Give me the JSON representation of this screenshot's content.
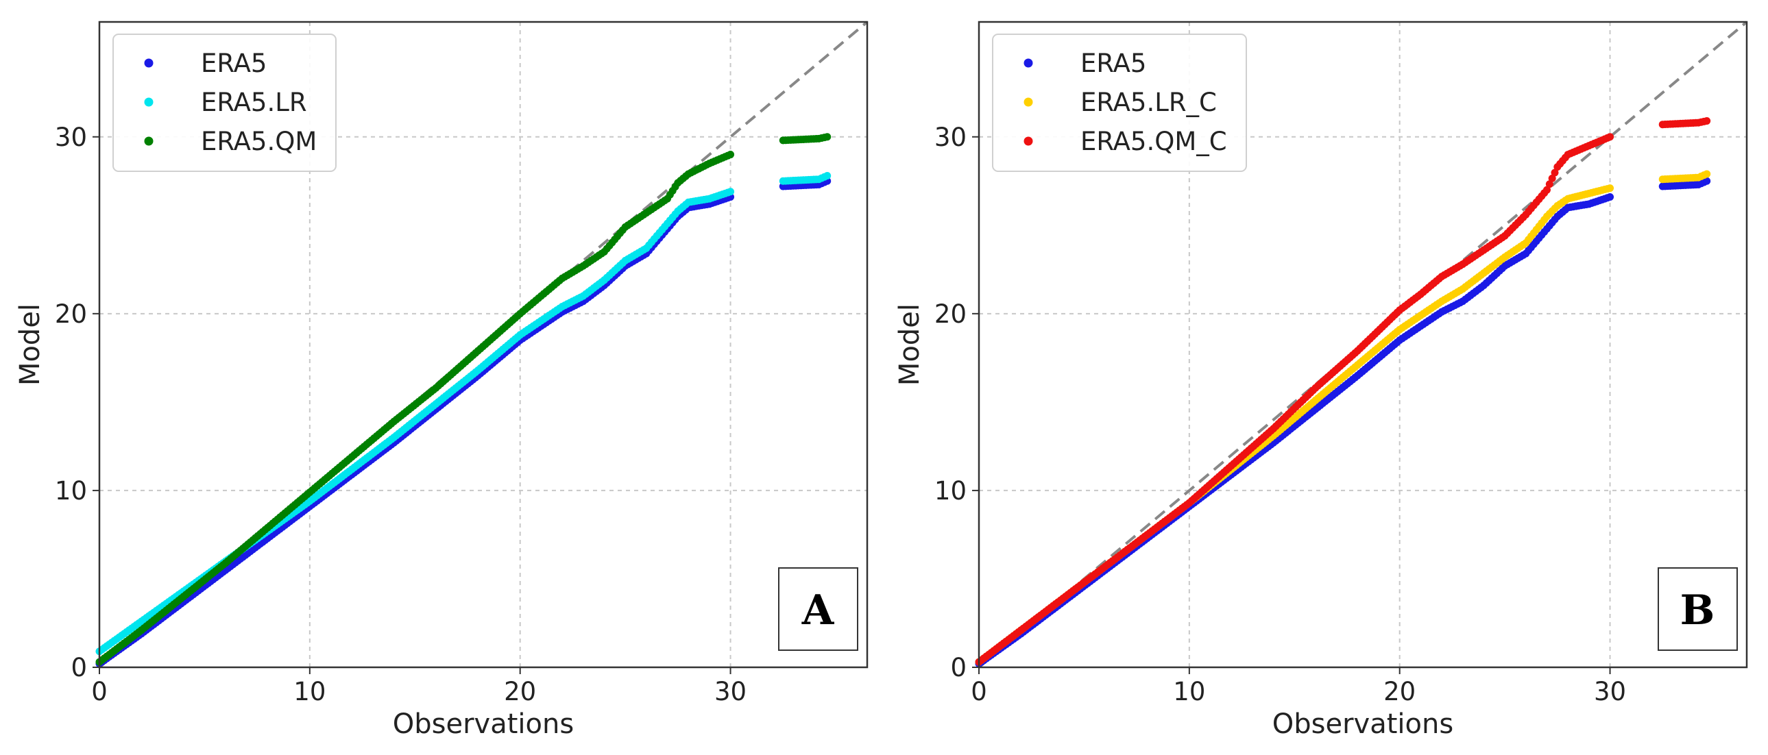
{
  "chart_data": [
    {
      "type": "scatter",
      "panel": "A",
      "xlabel": "Observations",
      "ylabel": "Model",
      "xlim": [
        0,
        36.5
      ],
      "ylim": [
        0,
        36.5
      ],
      "xticks": [
        0,
        10,
        20,
        30
      ],
      "yticks": [
        0,
        10,
        20,
        30
      ],
      "grid": true,
      "legend_position": "top-left",
      "reference_line": {
        "style": "dashed",
        "color": "#888888",
        "from": [
          0,
          0
        ],
        "to": [
          36.5,
          36.5
        ]
      },
      "series": [
        {
          "name": "ERA5",
          "color": "#1a1ae6",
          "points": [
            [
              0,
              0.2
            ],
            [
              2,
              1.9
            ],
            [
              4,
              3.7
            ],
            [
              6,
              5.5
            ],
            [
              8,
              7.3
            ],
            [
              10,
              9.1
            ],
            [
              12,
              10.9
            ],
            [
              14,
              12.7
            ],
            [
              16,
              14.6
            ],
            [
              18,
              16.5
            ],
            [
              20,
              18.5
            ],
            [
              21,
              19.3
            ],
            [
              22,
              20.1
            ],
            [
              23,
              20.7
            ],
            [
              24,
              21.6
            ],
            [
              25,
              22.7
            ],
            [
              26,
              23.4
            ],
            [
              27,
              24.8
            ],
            [
              27.5,
              25.5
            ],
            [
              28,
              26
            ],
            [
              29,
              26.2
            ],
            [
              30,
              26.6
            ],
            [
              32.5,
              27.2
            ],
            [
              34.2,
              27.3
            ],
            [
              34.6,
              27.5
            ]
          ]
        },
        {
          "name": "ERA5.LR",
          "color": "#00e5ee",
          "points": [
            [
              0,
              0.9
            ],
            [
              2,
              2.6
            ],
            [
              4,
              4.3
            ],
            [
              6,
              6
            ],
            [
              8,
              7.7
            ],
            [
              10,
              9.4
            ],
            [
              12,
              11.2
            ],
            [
              14,
              13
            ],
            [
              16,
              14.9
            ],
            [
              18,
              16.8
            ],
            [
              20,
              18.8
            ],
            [
              21,
              19.6
            ],
            [
              22,
              20.4
            ],
            [
              23,
              21
            ],
            [
              24,
              21.9
            ],
            [
              25,
              23
            ],
            [
              26,
              23.7
            ],
            [
              27,
              25.1
            ],
            [
              27.5,
              25.8
            ],
            [
              28,
              26.3
            ],
            [
              29,
              26.5
            ],
            [
              30,
              26.9
            ],
            [
              32.5,
              27.5
            ],
            [
              34.2,
              27.6
            ],
            [
              34.6,
              27.8
            ]
          ]
        },
        {
          "name": "ERA5.QM",
          "color": "#008000",
          "points": [
            [
              0,
              0.3
            ],
            [
              2,
              2.1
            ],
            [
              4,
              4
            ],
            [
              6,
              5.9
            ],
            [
              8,
              7.9
            ],
            [
              10,
              9.9
            ],
            [
              12,
              11.9
            ],
            [
              14,
              13.9
            ],
            [
              16,
              15.8
            ],
            [
              18,
              17.9
            ],
            [
              20,
              20
            ],
            [
              21,
              21
            ],
            [
              22,
              22
            ],
            [
              23,
              22.7
            ],
            [
              24,
              23.5
            ],
            [
              25,
              24.9
            ],
            [
              26,
              25.7
            ],
            [
              27,
              26.5
            ],
            [
              27.5,
              27.4
            ],
            [
              28,
              27.9
            ],
            [
              29,
              28.5
            ],
            [
              30,
              29
            ],
            [
              32.5,
              29.8
            ],
            [
              34.2,
              29.9
            ],
            [
              34.6,
              30
            ]
          ]
        }
      ],
      "panel_label": "A"
    },
    {
      "type": "scatter",
      "panel": "B",
      "xlabel": "Observations",
      "ylabel": "Model",
      "xlim": [
        0,
        36.5
      ],
      "ylim": [
        0,
        36.5
      ],
      "xticks": [
        0,
        10,
        20,
        30
      ],
      "yticks": [
        0,
        10,
        20,
        30
      ],
      "grid": true,
      "legend_position": "top-left",
      "reference_line": {
        "style": "dashed",
        "color": "#888888",
        "from": [
          0,
          0
        ],
        "to": [
          36.5,
          36.5
        ]
      },
      "series": [
        {
          "name": "ERA5",
          "color": "#1a1ae6",
          "points": [
            [
              0,
              0.2
            ],
            [
              2,
              1.9
            ],
            [
              4,
              3.7
            ],
            [
              6,
              5.5
            ],
            [
              8,
              7.3
            ],
            [
              10,
              9.1
            ],
            [
              12,
              10.9
            ],
            [
              14,
              12.7
            ],
            [
              16,
              14.6
            ],
            [
              18,
              16.5
            ],
            [
              20,
              18.5
            ],
            [
              21,
              19.3
            ],
            [
              22,
              20.1
            ],
            [
              23,
              20.7
            ],
            [
              24,
              21.6
            ],
            [
              25,
              22.7
            ],
            [
              26,
              23.4
            ],
            [
              27,
              24.8
            ],
            [
              27.5,
              25.5
            ],
            [
              28,
              26
            ],
            [
              29,
              26.2
            ],
            [
              30,
              26.6
            ],
            [
              32.5,
              27.2
            ],
            [
              34.2,
              27.3
            ],
            [
              34.6,
              27.5
            ]
          ]
        },
        {
          "name": "ERA5.LR_C",
          "color": "#ffd000",
          "points": [
            [
              0,
              0.3
            ],
            [
              2,
              2.1
            ],
            [
              4,
              3.9
            ],
            [
              6,
              5.7
            ],
            [
              8,
              7.5
            ],
            [
              10,
              9.3
            ],
            [
              12,
              11.2
            ],
            [
              14,
              13.1
            ],
            [
              16,
              15.1
            ],
            [
              18,
              17.1
            ],
            [
              20,
              19.1
            ],
            [
              21,
              19.9
            ],
            [
              22,
              20.7
            ],
            [
              23,
              21.4
            ],
            [
              24,
              22.3
            ],
            [
              25,
              23.2
            ],
            [
              26,
              24
            ],
            [
              27,
              25.5
            ],
            [
              27.5,
              26.1
            ],
            [
              28,
              26.5
            ],
            [
              29,
              26.8
            ],
            [
              30,
              27.1
            ],
            [
              32.5,
              27.6
            ],
            [
              34.2,
              27.7
            ],
            [
              34.6,
              27.9
            ]
          ]
        },
        {
          "name": "ERA5.QM_C",
          "color": "#ee1111",
          "points": [
            [
              0,
              0.3
            ],
            [
              2,
              2.1
            ],
            [
              4,
              3.9
            ],
            [
              6,
              5.7
            ],
            [
              8,
              7.5
            ],
            [
              10,
              9.3
            ],
            [
              12,
              11.4
            ],
            [
              14,
              13.5
            ],
            [
              16,
              15.8
            ],
            [
              18,
              17.9
            ],
            [
              20,
              20.2
            ],
            [
              21,
              21.1
            ],
            [
              22,
              22.1
            ],
            [
              23,
              22.8
            ],
            [
              24,
              23.6
            ],
            [
              25,
              24.4
            ],
            [
              26,
              25.6
            ],
            [
              27,
              27
            ],
            [
              27.5,
              28.3
            ],
            [
              28,
              29
            ],
            [
              29,
              29.5
            ],
            [
              30,
              30
            ],
            [
              32.5,
              30.7
            ],
            [
              34.2,
              30.8
            ],
            [
              34.6,
              30.9
            ]
          ]
        }
      ],
      "panel_label": "B"
    }
  ]
}
